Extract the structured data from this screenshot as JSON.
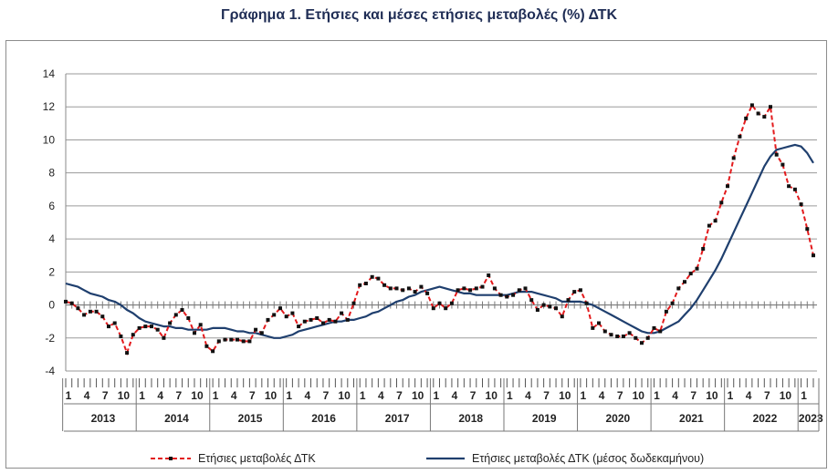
{
  "title": "Γράφημα 1. Ετήσιες και μέσες ετήσιες μεταβολές (%) ΔΤΚ",
  "chart_data": {
    "type": "line",
    "title": "Γράφημα 1. Ετήσιες και μέσες ετήσιες μεταβολές (%) ΔΤΚ",
    "xlabel": "",
    "ylabel": "",
    "ylim": [
      -4,
      14
    ],
    "y_ticks": [
      -4,
      -2,
      0,
      2,
      4,
      6,
      8,
      10,
      12,
      14
    ],
    "grid": "horizontal",
    "legend_position": "bottom",
    "month_tick_labels": [
      "1",
      "4",
      "7",
      "10"
    ],
    "years": [
      "2013",
      "2014",
      "2015",
      "2016",
      "2017",
      "2018",
      "2019",
      "2020",
      "2021",
      "2022",
      "2023"
    ],
    "x_start": "2013-01",
    "x_end": "2023-04",
    "series": [
      {
        "name": "Ετήσιες μεταβολές ΔΤΚ",
        "color": "#e31a1c",
        "marker_color": "#111111",
        "style": "dashed-with-markers",
        "values": [
          0.2,
          0.1,
          -0.2,
          -0.6,
          -0.4,
          -0.4,
          -0.7,
          -1.3,
          -1.1,
          -1.9,
          -2.9,
          -1.8,
          -1.4,
          -1.3,
          -1.3,
          -1.5,
          -2.0,
          -1.1,
          -0.6,
          -0.3,
          -0.8,
          -1.7,
          -1.2,
          -2.5,
          -2.8,
          -2.2,
          -2.1,
          -2.1,
          -2.1,
          -2.2,
          -2.2,
          -1.5,
          -1.7,
          -0.9,
          -0.6,
          -0.2,
          -0.7,
          -0.5,
          -1.3,
          -1.0,
          -0.9,
          -0.8,
          -1.1,
          -0.9,
          -1.0,
          -0.5,
          -0.9,
          0.1,
          1.2,
          1.3,
          1.7,
          1.6,
          1.2,
          1.0,
          1.0,
          0.9,
          1.0,
          0.8,
          1.1,
          0.7,
          -0.2,
          0.1,
          -0.2,
          0.1,
          0.9,
          1.0,
          0.9,
          1.0,
          1.1,
          1.8,
          1.0,
          0.6,
          0.5,
          0.6,
          0.9,
          1.0,
          0.3,
          -0.3,
          0.0,
          -0.1,
          -0.2,
          -0.7,
          0.3,
          0.8,
          0.9,
          0.1,
          -1.4,
          -1.1,
          -1.6,
          -1.8,
          -1.9,
          -1.9,
          -1.7,
          -2.0,
          -2.3,
          -2.0,
          -1.4,
          -1.6,
          -0.4,
          0.1,
          1.0,
          1.4,
          1.9,
          2.2,
          3.4,
          4.8,
          5.1,
          6.2,
          7.2,
          8.9,
          10.2,
          11.3,
          12.1,
          11.6,
          11.4,
          12.0,
          9.1,
          8.5,
          7.2,
          7.0,
          6.1,
          4.6,
          3.0
        ]
      },
      {
        "name": "Ετήσιες μεταβολές ΔΤΚ (μέσος δωδεκαμήνου)",
        "color": "#1f3f6e",
        "style": "solid",
        "values": [
          1.3,
          1.2,
          1.1,
          0.9,
          0.7,
          0.6,
          0.5,
          0.3,
          0.2,
          0.0,
          -0.3,
          -0.5,
          -0.8,
          -1.0,
          -1.1,
          -1.2,
          -1.3,
          -1.3,
          -1.4,
          -1.4,
          -1.5,
          -1.5,
          -1.5,
          -1.5,
          -1.4,
          -1.4,
          -1.4,
          -1.5,
          -1.6,
          -1.6,
          -1.7,
          -1.7,
          -1.8,
          -1.9,
          -2.0,
          -2.0,
          -1.9,
          -1.8,
          -1.6,
          -1.5,
          -1.4,
          -1.3,
          -1.2,
          -1.1,
          -1.0,
          -1.0,
          -0.9,
          -0.9,
          -0.8,
          -0.7,
          -0.5,
          -0.4,
          -0.2,
          0.0,
          0.2,
          0.3,
          0.5,
          0.6,
          0.8,
          0.9,
          1.0,
          1.1,
          1.0,
          0.9,
          0.8,
          0.7,
          0.7,
          0.6,
          0.6,
          0.6,
          0.6,
          0.6,
          0.6,
          0.7,
          0.8,
          0.8,
          0.8,
          0.7,
          0.6,
          0.5,
          0.4,
          0.2,
          0.2,
          0.2,
          0.2,
          0.1,
          0.0,
          -0.2,
          -0.4,
          -0.6,
          -0.8,
          -1.0,
          -1.2,
          -1.4,
          -1.6,
          -1.7,
          -1.7,
          -1.6,
          -1.4,
          -1.2,
          -1.0,
          -0.6,
          -0.2,
          0.3,
          0.9,
          1.5,
          2.1,
          2.8,
          3.6,
          4.4,
          5.2,
          6.0,
          6.8,
          7.6,
          8.4,
          9.0,
          9.4,
          9.5,
          9.6,
          9.7,
          9.6,
          9.2,
          8.6
        ]
      }
    ]
  }
}
